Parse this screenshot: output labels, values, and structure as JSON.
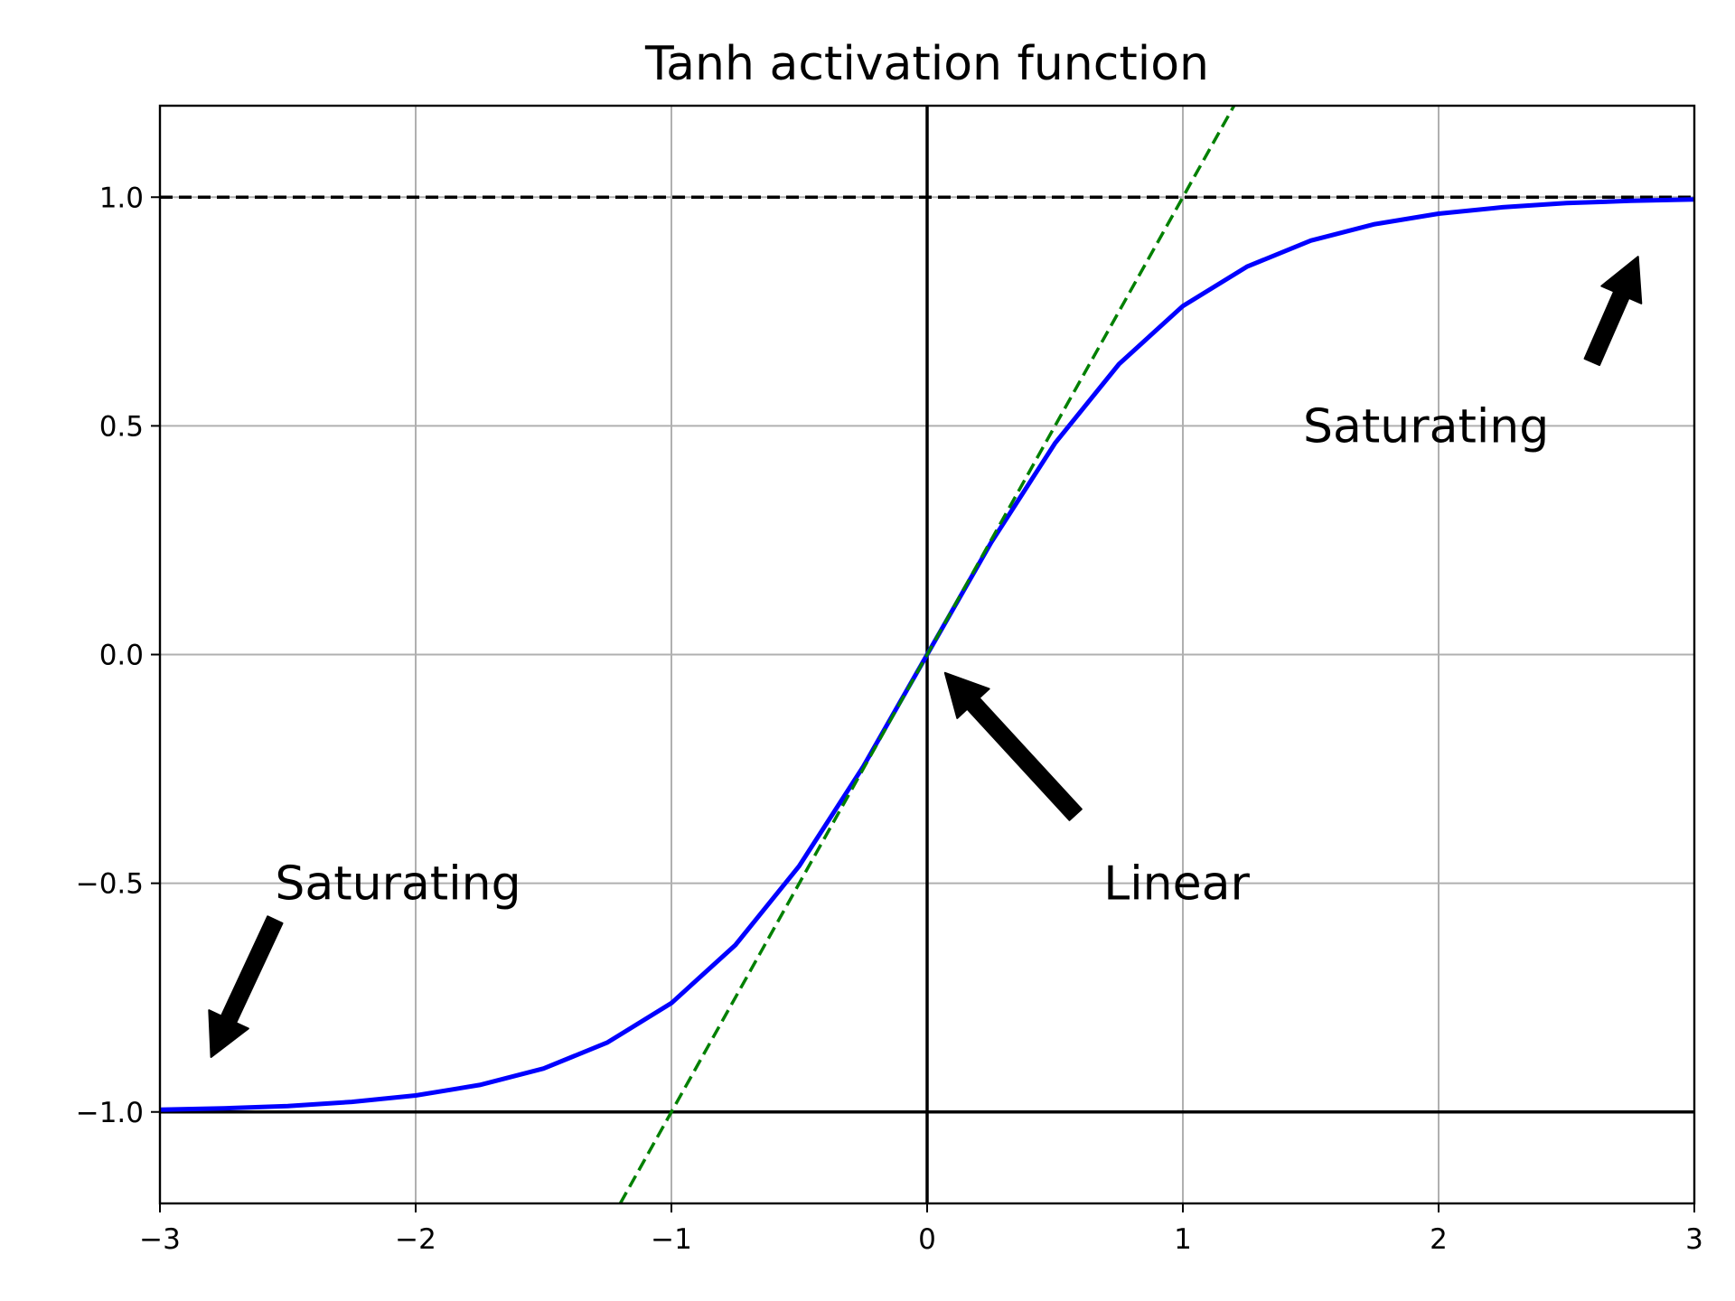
{
  "chart_data": {
    "type": "line",
    "title": "Tanh activation function",
    "xlabel": "",
    "ylabel": "",
    "xlim": [
      -3,
      3
    ],
    "ylim": [
      -1.2,
      1.2
    ],
    "grid": true,
    "x_ticks": [
      -3,
      -2,
      -1,
      0,
      1,
      2,
      3
    ],
    "x_tick_labels": [
      "−3",
      "−2",
      "−1",
      "0",
      "1",
      "2",
      "3"
    ],
    "y_ticks": [
      -1.0,
      -0.5,
      0.0,
      0.5,
      1.0
    ],
    "y_tick_labels": [
      "−1.0",
      "−0.5",
      "0.0",
      "0.5",
      "1.0"
    ],
    "series": [
      {
        "color": "#0000ff",
        "style": "solid",
        "x": [
          -3.0,
          -2.75,
          -2.5,
          -2.25,
          -2.0,
          -1.75,
          -1.5,
          -1.25,
          -1.0,
          -0.75,
          -0.5,
          -0.25,
          0.0,
          0.25,
          0.5,
          0.75,
          1.0,
          1.25,
          1.5,
          1.75,
          2.0,
          2.25,
          2.5,
          2.75,
          3.0
        ],
        "y": [
          -0.995,
          -0.992,
          -0.987,
          -0.978,
          -0.964,
          -0.941,
          -0.905,
          -0.848,
          -0.762,
          -0.635,
          -0.462,
          -0.245,
          0.0,
          0.245,
          0.462,
          0.635,
          0.762,
          0.848,
          0.905,
          0.941,
          0.964,
          0.978,
          0.987,
          0.992,
          0.995
        ]
      },
      {
        "color": "#008000",
        "style": "dashed",
        "x": [
          -1.2,
          1.2
        ],
        "y": [
          -1.2,
          1.2
        ]
      }
    ],
    "reference_lines": [
      {
        "orientation": "horizontal",
        "value": 1.0,
        "style": "dashed",
        "color": "#000000"
      },
      {
        "orientation": "horizontal",
        "value": -1.0,
        "style": "solid",
        "color": "#000000"
      },
      {
        "orientation": "vertical",
        "value": 0.0,
        "style": "solid",
        "color": "#000000"
      }
    ],
    "annotations": [
      {
        "text": "Saturating",
        "text_x": -2.55,
        "text_y": -0.5,
        "arrow_from": [
          -2.55,
          -0.58
        ],
        "arrow_to": [
          -2.8,
          -0.88
        ]
      },
      {
        "text": "Linear",
        "text_x": 0.69,
        "text_y": -0.5,
        "arrow_from": [
          0.58,
          -0.35
        ],
        "arrow_to": [
          0.07,
          -0.04
        ]
      },
      {
        "text": "Saturating",
        "text_x": 1.47,
        "text_y": 0.5,
        "arrow_from": [
          2.6,
          0.64
        ],
        "arrow_to": [
          2.78,
          0.87
        ]
      }
    ]
  }
}
